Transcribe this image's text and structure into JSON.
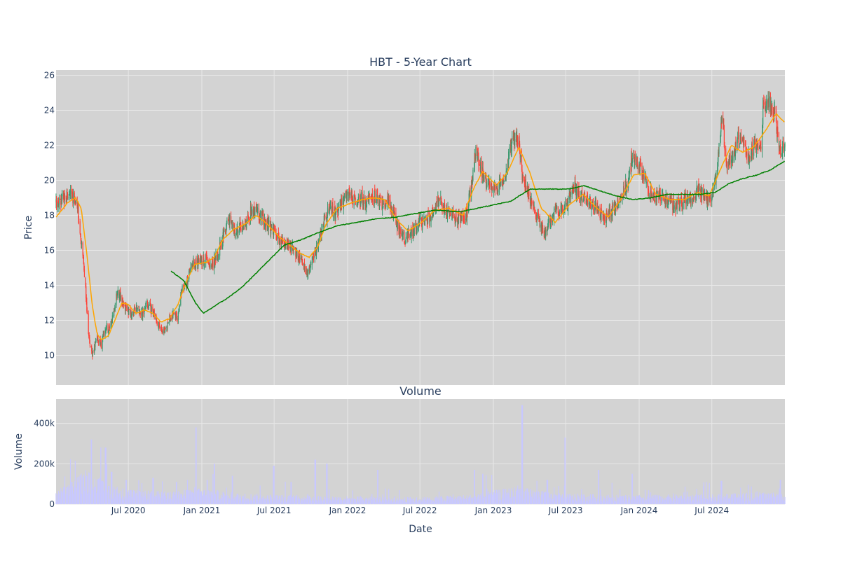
{
  "chart_data": {
    "type": "candlestick",
    "title": "HBT - 5-Year Chart",
    "subplot_title": "Volume",
    "xlabel": "Date",
    "price_ylabel": "Price",
    "volume_ylabel": "Volume",
    "x_range": [
      "2020-01-02",
      "2024-12-31"
    ],
    "x_ticks": [
      {
        "date": "2020-07-01",
        "label": "Jul 2020"
      },
      {
        "date": "2021-01-01",
        "label": "Jan 2021"
      },
      {
        "date": "2021-07-01",
        "label": "Jul 2021"
      },
      {
        "date": "2022-01-01",
        "label": "Jan 2022"
      },
      {
        "date": "2022-07-01",
        "label": "Jul 2022"
      },
      {
        "date": "2023-01-01",
        "label": "Jan 2023"
      },
      {
        "date": "2023-07-01",
        "label": "Jul 2023"
      },
      {
        "date": "2024-01-01",
        "label": "Jan 2024"
      },
      {
        "date": "2024-07-01",
        "label": "Jul 2024"
      }
    ],
    "price_ylim": [
      8.3,
      26.3
    ],
    "price_ticks": [
      10,
      12,
      14,
      16,
      18,
      20,
      22,
      24,
      26
    ],
    "volume_ylim": [
      0,
      520000
    ],
    "volume_ticks": [
      {
        "v": 0,
        "label": "0"
      },
      {
        "v": 200000,
        "label": "200k"
      },
      {
        "v": 400000,
        "label": "400k"
      }
    ],
    "grid": true,
    "colors": {
      "increasing": "#3D9970",
      "decreasing": "#FF4136",
      "ma_short": "#FFA500",
      "ma_long": "#008000",
      "volume": "#c8c8ff",
      "plot_bg": "#d3d3d3",
      "grid": "#e8e8e8"
    },
    "price_path": [
      [
        "2020-01-02",
        18.7
      ],
      [
        "2020-01-20",
        18.9
      ],
      [
        "2020-02-10",
        19.2
      ],
      [
        "2020-02-24",
        18.6
      ],
      [
        "2020-03-06",
        16.5
      ],
      [
        "2020-03-16",
        13.8
      ],
      [
        "2020-03-24",
        11.0
      ],
      [
        "2020-04-02",
        10.1
      ],
      [
        "2020-04-14",
        11.0
      ],
      [
        "2020-04-24",
        10.6
      ],
      [
        "2020-05-05",
        11.7
      ],
      [
        "2020-05-15",
        11.4
      ],
      [
        "2020-05-26",
        12.6
      ],
      [
        "2020-06-05",
        13.8
      ],
      [
        "2020-06-15",
        13.0
      ],
      [
        "2020-06-26",
        12.7
      ],
      [
        "2020-07-08",
        12.3
      ],
      [
        "2020-07-22",
        12.8
      ],
      [
        "2020-08-05",
        12.4
      ],
      [
        "2020-08-19",
        12.9
      ],
      [
        "2020-09-02",
        12.4
      ],
      [
        "2020-09-16",
        11.7
      ],
      [
        "2020-09-28",
        11.4
      ],
      [
        "2020-10-09",
        11.9
      ],
      [
        "2020-10-21",
        12.4
      ],
      [
        "2020-11-02",
        12.2
      ],
      [
        "2020-11-10",
        13.6
      ],
      [
        "2020-11-25",
        14.3
      ],
      [
        "2020-12-10",
        15.2
      ],
      [
        "2020-12-28",
        15.4
      ],
      [
        "2021-01-13",
        15.6
      ],
      [
        "2021-01-26",
        15.1
      ],
      [
        "2021-02-09",
        15.7
      ],
      [
        "2021-02-24",
        16.8
      ],
      [
        "2021-03-10",
        17.8
      ],
      [
        "2021-03-24",
        17.0
      ],
      [
        "2021-04-08",
        17.3
      ],
      [
        "2021-04-22",
        17.6
      ],
      [
        "2021-05-06",
        18.3
      ],
      [
        "2021-05-20",
        18.1
      ],
      [
        "2021-06-03",
        17.8
      ],
      [
        "2021-06-17",
        17.5
      ],
      [
        "2021-07-01",
        17.0
      ],
      [
        "2021-07-15",
        16.6
      ],
      [
        "2021-07-29",
        16.4
      ],
      [
        "2021-08-12",
        16.2
      ],
      [
        "2021-08-26",
        15.9
      ],
      [
        "2021-09-09",
        15.3
      ],
      [
        "2021-09-22",
        14.5
      ],
      [
        "2021-10-05",
        15.6
      ],
      [
        "2021-10-20",
        16.3
      ],
      [
        "2021-11-03",
        17.7
      ],
      [
        "2021-11-17",
        18.4
      ],
      [
        "2021-12-01",
        18.1
      ],
      [
        "2021-12-15",
        18.6
      ],
      [
        "2022-01-05",
        19.2
      ],
      [
        "2022-01-19",
        18.8
      ],
      [
        "2022-02-02",
        19.0
      ],
      [
        "2022-02-16",
        18.6
      ],
      [
        "2022-03-02",
        19.1
      ],
      [
        "2022-03-16",
        19.0
      ],
      [
        "2022-03-30",
        18.6
      ],
      [
        "2022-04-13",
        18.8
      ],
      [
        "2022-04-27",
        18.2
      ],
      [
        "2022-05-11",
        17.0
      ],
      [
        "2022-05-25",
        16.6
      ],
      [
        "2022-06-08",
        17.0
      ],
      [
        "2022-06-22",
        17.4
      ],
      [
        "2022-07-06",
        17.6
      ],
      [
        "2022-07-20",
        17.8
      ],
      [
        "2022-08-03",
        18.1
      ],
      [
        "2022-08-17",
        18.9
      ],
      [
        "2022-08-31",
        18.3
      ],
      [
        "2022-09-14",
        18.0
      ],
      [
        "2022-09-28",
        17.7
      ],
      [
        "2022-10-12",
        17.9
      ],
      [
        "2022-10-26",
        18.1
      ],
      [
        "2022-11-09",
        20.1
      ],
      [
        "2022-11-18",
        21.8
      ],
      [
        "2022-12-02",
        20.6
      ],
      [
        "2022-12-16",
        19.8
      ],
      [
        "2023-01-03",
        19.6
      ],
      [
        "2023-01-17",
        19.8
      ],
      [
        "2023-01-31",
        20.3
      ],
      [
        "2023-02-14",
        22.1
      ],
      [
        "2023-02-28",
        22.3
      ],
      [
        "2023-03-06",
        22.5
      ],
      [
        "2023-03-14",
        20.2
      ],
      [
        "2023-03-28",
        19.3
      ],
      [
        "2023-04-11",
        18.6
      ],
      [
        "2023-04-25",
        17.7
      ],
      [
        "2023-05-09",
        16.9
      ],
      [
        "2023-05-23",
        17.6
      ],
      [
        "2023-06-06",
        18.4
      ],
      [
        "2023-06-20",
        18.2
      ],
      [
        "2023-07-05",
        18.6
      ],
      [
        "2023-07-19",
        19.7
      ],
      [
        "2023-08-02",
        19.3
      ],
      [
        "2023-08-16",
        18.9
      ],
      [
        "2023-08-30",
        18.7
      ],
      [
        "2023-09-13",
        18.5
      ],
      [
        "2023-09-27",
        18.0
      ],
      [
        "2023-10-11",
        17.9
      ],
      [
        "2023-10-25",
        18.3
      ],
      [
        "2023-11-08",
        18.8
      ],
      [
        "2023-11-22",
        19.3
      ],
      [
        "2023-12-06",
        20.0
      ],
      [
        "2023-12-14",
        21.4
      ],
      [
        "2023-12-28",
        20.9
      ],
      [
        "2024-01-11",
        20.3
      ],
      [
        "2024-01-25",
        19.4
      ],
      [
        "2024-02-08",
        19.1
      ],
      [
        "2024-02-22",
        19.0
      ],
      [
        "2024-03-07",
        18.8
      ],
      [
        "2024-03-21",
        18.7
      ],
      [
        "2024-04-04",
        18.6
      ],
      [
        "2024-04-18",
        18.7
      ],
      [
        "2024-05-02",
        18.9
      ],
      [
        "2024-05-16",
        19.2
      ],
      [
        "2024-05-30",
        19.4
      ],
      [
        "2024-06-13",
        19.0
      ],
      [
        "2024-06-27",
        18.8
      ],
      [
        "2024-07-11",
        20.2
      ],
      [
        "2024-07-25",
        23.6
      ],
      [
        "2024-08-08",
        21.0
      ],
      [
        "2024-08-22",
        21.4
      ],
      [
        "2024-09-05",
        22.4
      ],
      [
        "2024-09-19",
        21.9
      ],
      [
        "2024-10-03",
        21.4
      ],
      [
        "2024-10-17",
        22.1
      ],
      [
        "2024-10-31",
        21.7
      ],
      [
        "2024-11-07",
        24.3
      ],
      [
        "2024-11-21",
        24.6
      ],
      [
        "2024-12-05",
        23.8
      ],
      [
        "2024-12-17",
        21.9
      ],
      [
        "2024-12-31",
        21.8
      ]
    ],
    "ma_short_path": [
      [
        "2020-01-02",
        17.9
      ],
      [
        "2020-01-30",
        18.7
      ],
      [
        "2020-02-20",
        19.0
      ],
      [
        "2020-03-05",
        18.4
      ],
      [
        "2020-03-19",
        15.8
      ],
      [
        "2020-04-02",
        12.8
      ],
      [
        "2020-04-14",
        11.2
      ],
      [
        "2020-04-24",
        10.9
      ],
      [
        "2020-05-12",
        11.1
      ],
      [
        "2020-05-28",
        12.0
      ],
      [
        "2020-06-15",
        13.0
      ],
      [
        "2020-07-01",
        12.9
      ],
      [
        "2020-07-20",
        12.4
      ],
      [
        "2020-08-10",
        12.6
      ],
      [
        "2020-08-31",
        12.4
      ],
      [
        "2020-09-21",
        11.9
      ],
      [
        "2020-10-12",
        12.1
      ],
      [
        "2020-11-02",
        12.9
      ],
      [
        "2020-11-23",
        14.2
      ],
      [
        "2020-12-14",
        15.2
      ],
      [
        "2021-01-11",
        15.3
      ],
      [
        "2021-02-01",
        15.6
      ],
      [
        "2021-02-22",
        16.6
      ],
      [
        "2021-03-22",
        17.2
      ],
      [
        "2021-04-19",
        17.5
      ],
      [
        "2021-05-17",
        18.0
      ],
      [
        "2021-06-14",
        17.5
      ],
      [
        "2021-07-12",
        16.8
      ],
      [
        "2021-08-09",
        16.3
      ],
      [
        "2021-09-06",
        15.8
      ],
      [
        "2021-09-27",
        15.6
      ],
      [
        "2021-10-18",
        16.2
      ],
      [
        "2021-11-08",
        17.5
      ],
      [
        "2021-12-06",
        18.4
      ],
      [
        "2022-01-10",
        18.7
      ],
      [
        "2022-02-07",
        18.9
      ],
      [
        "2022-03-07",
        19.0
      ],
      [
        "2022-04-04",
        18.9
      ],
      [
        "2022-05-02",
        17.8
      ],
      [
        "2022-06-01",
        17.1
      ],
      [
        "2022-07-05",
        17.6
      ],
      [
        "2022-08-08",
        18.3
      ],
      [
        "2022-09-12",
        18.4
      ],
      [
        "2022-10-17",
        18.0
      ],
      [
        "2022-11-14",
        19.6
      ],
      [
        "2022-12-05",
        20.5
      ],
      [
        "2023-01-09",
        19.7
      ],
      [
        "2023-02-06",
        20.5
      ],
      [
        "2023-03-06",
        21.9
      ],
      [
        "2023-04-03",
        20.4
      ],
      [
        "2023-05-01",
        18.4
      ],
      [
        "2023-06-05",
        17.6
      ],
      [
        "2023-07-10",
        18.6
      ],
      [
        "2023-08-14",
        19.2
      ],
      [
        "2023-09-18",
        18.4
      ],
      [
        "2023-10-16",
        17.9
      ],
      [
        "2023-11-13",
        18.8
      ],
      [
        "2023-12-18",
        20.3
      ],
      [
        "2024-01-15",
        20.4
      ],
      [
        "2024-02-12",
        19.2
      ],
      [
        "2024-03-18",
        18.9
      ],
      [
        "2024-04-22",
        18.9
      ],
      [
        "2024-05-27",
        19.3
      ],
      [
        "2024-06-24",
        19.1
      ],
      [
        "2024-07-22",
        20.6
      ],
      [
        "2024-08-19",
        22.0
      ],
      [
        "2024-09-16",
        21.6
      ],
      [
        "2024-10-14",
        21.9
      ],
      [
        "2024-11-11",
        22.8
      ],
      [
        "2024-12-09",
        23.8
      ],
      [
        "2024-12-31",
        23.3
      ]
    ],
    "ma_long_path": [
      [
        "2020-10-16",
        14.8
      ],
      [
        "2020-11-16",
        14.3
      ],
      [
        "2020-12-16",
        13.0
      ],
      [
        "2021-01-05",
        12.4
      ],
      [
        "2021-02-01",
        12.8
      ],
      [
        "2021-03-08",
        13.3
      ],
      [
        "2021-04-12",
        13.9
      ],
      [
        "2021-05-17",
        14.7
      ],
      [
        "2021-06-21",
        15.5
      ],
      [
        "2021-07-26",
        16.3
      ],
      [
        "2021-09-06",
        16.6
      ],
      [
        "2021-10-18",
        17.0
      ],
      [
        "2021-12-06",
        17.4
      ],
      [
        "2022-01-24",
        17.6
      ],
      [
        "2022-03-14",
        17.8
      ],
      [
        "2022-05-02",
        17.9
      ],
      [
        "2022-06-20",
        18.1
      ],
      [
        "2022-08-08",
        18.3
      ],
      [
        "2022-10-10",
        18.2
      ],
      [
        "2022-12-12",
        18.5
      ],
      [
        "2023-02-13",
        18.8
      ],
      [
        "2023-04-03",
        19.5
      ],
      [
        "2023-05-22",
        19.5
      ],
      [
        "2023-07-10",
        19.5
      ],
      [
        "2023-08-14",
        19.7
      ],
      [
        "2023-09-25",
        19.4
      ],
      [
        "2023-11-06",
        19.1
      ],
      [
        "2023-12-18",
        18.9
      ],
      [
        "2024-01-29",
        19.0
      ],
      [
        "2024-03-11",
        19.2
      ],
      [
        "2024-04-22",
        19.2
      ],
      [
        "2024-06-03",
        19.2
      ],
      [
        "2024-07-08",
        19.3
      ],
      [
        "2024-08-12",
        19.8
      ],
      [
        "2024-09-16",
        20.1
      ],
      [
        "2024-10-21",
        20.3
      ],
      [
        "2024-11-25",
        20.6
      ],
      [
        "2024-12-31",
        21.1
      ]
    ],
    "volume_levels": [
      [
        "2020-01-02",
        40000
      ],
      [
        "2020-03-16",
        110000
      ],
      [
        "2020-05-01",
        70000
      ],
      [
        "2020-07-01",
        45000
      ],
      [
        "2020-10-01",
        40000
      ],
      [
        "2021-01-01",
        50000
      ],
      [
        "2021-04-01",
        35000
      ],
      [
        "2021-07-01",
        30000
      ],
      [
        "2021-10-01",
        28000
      ],
      [
        "2022-01-01",
        25000
      ],
      [
        "2022-07-01",
        22000
      ],
      [
        "2022-11-01",
        30000
      ],
      [
        "2023-03-01",
        55000
      ],
      [
        "2023-06-01",
        35000
      ],
      [
        "2023-12-01",
        28000
      ],
      [
        "2024-07-01",
        32000
      ],
      [
        "2024-12-31",
        40000
      ]
    ],
    "volume_spikes": [
      [
        "2020-02-10",
        110000
      ],
      [
        "2020-03-18",
        140000
      ],
      [
        "2020-03-30",
        320000
      ],
      [
        "2020-04-20",
        130000
      ],
      [
        "2020-05-05",
        280000
      ],
      [
        "2020-05-20",
        160000
      ],
      [
        "2020-06-26",
        120000
      ],
      [
        "2020-09-01",
        130000
      ],
      [
        "2020-10-30",
        110000
      ],
      [
        "2020-12-18",
        380000
      ],
      [
        "2021-01-15",
        120000
      ],
      [
        "2021-02-01",
        200000
      ],
      [
        "2021-03-19",
        140000
      ],
      [
        "2021-06-30",
        190000
      ],
      [
        "2021-08-13",
        110000
      ],
      [
        "2021-10-12",
        220000
      ],
      [
        "2021-11-10",
        200000
      ],
      [
        "2022-03-18",
        170000
      ],
      [
        "2022-11-14",
        170000
      ],
      [
        "2022-12-05",
        150000
      ],
      [
        "2023-03-14",
        490000
      ],
      [
        "2023-05-16",
        120000
      ],
      [
        "2023-06-30",
        330000
      ],
      [
        "2023-09-22",
        170000
      ],
      [
        "2023-12-15",
        150000
      ],
      [
        "2024-07-25",
        115000
      ],
      [
        "2024-12-20",
        120000
      ]
    ]
  }
}
